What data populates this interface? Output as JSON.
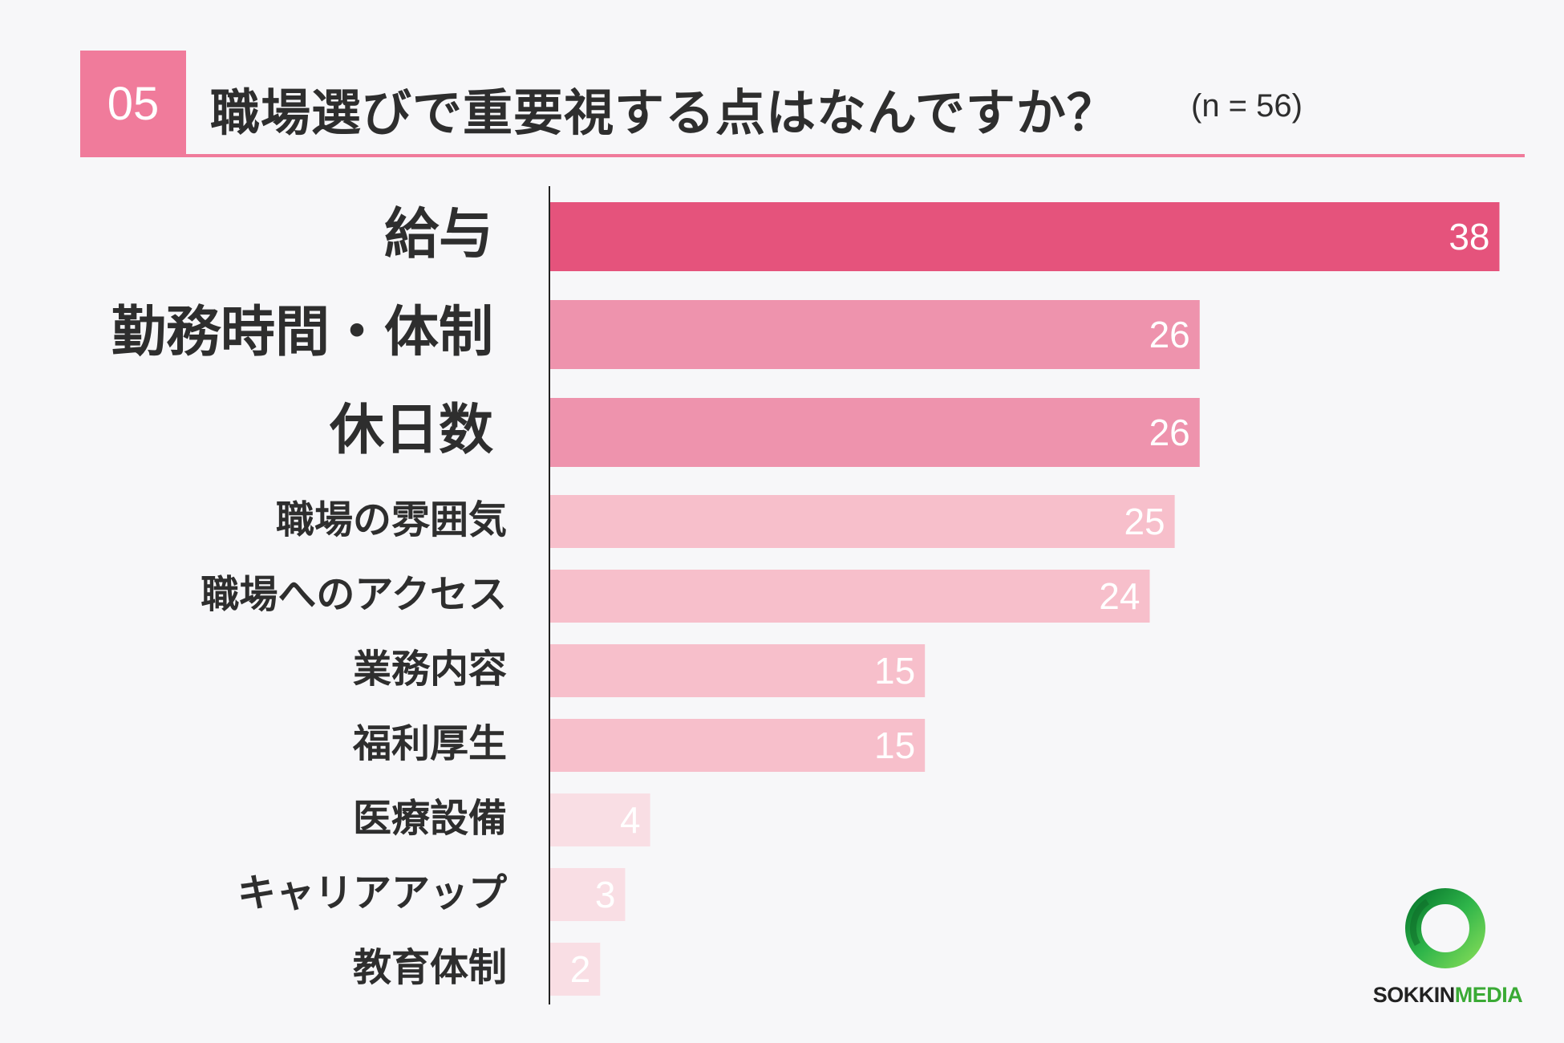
{
  "header": {
    "number": "05",
    "title": "職場選びで重要視する点はなんですか？",
    "sample": "(n = 56)"
  },
  "colors": {
    "accent": "#f07b9b",
    "top_bar": "#e5537c",
    "mid_bar": "#ee93ad",
    "light_bar": "#f7bfcb",
    "pale_bar": "#f9dee4"
  },
  "chart_data": {
    "type": "bar",
    "orientation": "horizontal",
    "categories": [
      "給与",
      "勤務時間・体制",
      "休日数",
      "職場の雰囲気",
      "職場へのアクセス",
      "業務内容",
      "福利厚生",
      "医療設備",
      "キャリアアップ",
      "教育体制"
    ],
    "values": [
      38,
      26,
      26,
      25,
      24,
      15,
      15,
      4,
      3,
      2
    ],
    "title": "職場選びで重要視する点はなんですか？",
    "xlabel": "",
    "ylabel": "",
    "grid": false,
    "legend": "none"
  },
  "logo": {
    "part1": "SOKKIN",
    "part2": "MEDIA"
  }
}
